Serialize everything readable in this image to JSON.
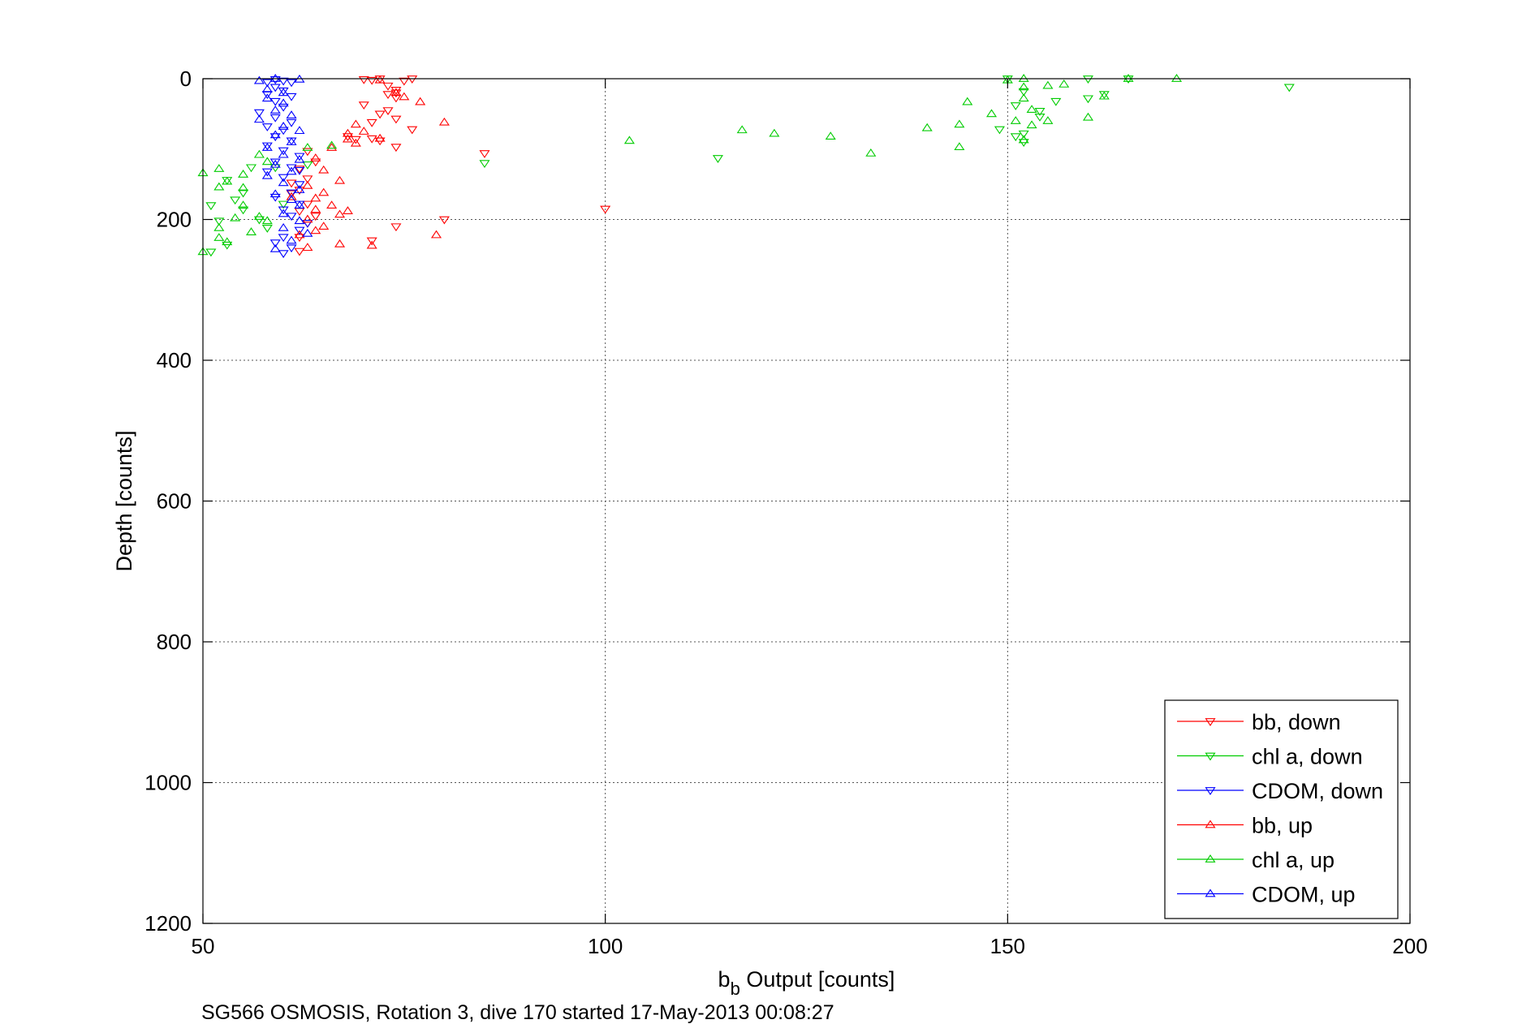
{
  "chart_data": {
    "type": "scatter",
    "title": "",
    "xlabel_main": "b",
    "xlabel_sub": "b",
    "xlabel_rest": " Output [counts]",
    "ylabel": "Depth [counts]",
    "caption": "SG566 OSMOSIS, Rotation 3, dive 170 started 17-May-2013 00:08:27",
    "xlim": [
      50,
      200
    ],
    "ylim": [
      0,
      1200
    ],
    "y_reversed": true,
    "grid": true,
    "legend_position": "bottom-right",
    "x_ticks": [
      50,
      100,
      150,
      200
    ],
    "y_ticks": [
      0,
      200,
      400,
      600,
      800,
      1000,
      1200
    ],
    "series": [
      {
        "name": "bb, down",
        "color": "#ff0000",
        "marker": "triangle-down",
        "points": [
          [
            70,
            1
          ],
          [
            71,
            2
          ],
          [
            72,
            0
          ],
          [
            75,
            3
          ],
          [
            76,
            0
          ],
          [
            73,
            10
          ],
          [
            74,
            16
          ],
          [
            74,
            20
          ],
          [
            74,
            27
          ],
          [
            73,
            22
          ],
          [
            70,
            37
          ],
          [
            73,
            45
          ],
          [
            72,
            50
          ],
          [
            74,
            57
          ],
          [
            71,
            62
          ],
          [
            76,
            72
          ],
          [
            68,
            82
          ],
          [
            71,
            85
          ],
          [
            72,
            88
          ],
          [
            74,
            97
          ],
          [
            85,
            106
          ],
          [
            63,
            103
          ],
          [
            64,
            118
          ],
          [
            62,
            128
          ],
          [
            63,
            142
          ],
          [
            61,
            148
          ],
          [
            62,
            158
          ],
          [
            61,
            163
          ],
          [
            63,
            178
          ],
          [
            62,
            188
          ],
          [
            100,
            185
          ],
          [
            64,
            195
          ],
          [
            63,
            205
          ],
          [
            80,
            200
          ],
          [
            74,
            210
          ],
          [
            62,
            225
          ],
          [
            71,
            230
          ],
          [
            62,
            245
          ],
          [
            69,
            86
          ]
        ]
      },
      {
        "name": "chl a, down",
        "color": "#00cc00",
        "marker": "triangle-down",
        "points": [
          [
            150,
            0
          ],
          [
            160,
            0
          ],
          [
            165,
            0
          ],
          [
            185,
            12
          ],
          [
            152,
            18
          ],
          [
            151,
            38
          ],
          [
            154,
            46
          ],
          [
            160,
            28
          ],
          [
            162,
            22
          ],
          [
            156,
            32
          ],
          [
            154,
            54
          ],
          [
            152,
            78
          ],
          [
            151,
            82
          ],
          [
            152,
            90
          ],
          [
            149,
            72
          ],
          [
            85,
            120
          ],
          [
            114,
            113
          ],
          [
            51,
            180
          ],
          [
            51,
            246
          ],
          [
            53,
            144
          ],
          [
            52,
            202
          ],
          [
            53,
            236
          ],
          [
            55,
            186
          ],
          [
            55,
            162
          ],
          [
            57,
            200
          ],
          [
            58,
            212
          ],
          [
            56,
            126
          ],
          [
            59,
            126
          ],
          [
            63,
            122
          ],
          [
            60,
            178
          ],
          [
            54,
            172
          ]
        ]
      },
      {
        "name": "CDOM, down",
        "color": "#0000ff",
        "marker": "triangle-down",
        "points": [
          [
            58,
            5
          ],
          [
            59,
            1
          ],
          [
            60,
            3
          ],
          [
            61,
            5
          ],
          [
            59,
            12
          ],
          [
            60,
            17
          ],
          [
            58,
            22
          ],
          [
            61,
            25
          ],
          [
            59,
            32
          ],
          [
            60,
            40
          ],
          [
            57,
            48
          ],
          [
            59,
            55
          ],
          [
            61,
            62
          ],
          [
            58,
            68
          ],
          [
            60,
            73
          ],
          [
            59,
            82
          ],
          [
            61,
            88
          ],
          [
            58,
            95
          ],
          [
            60,
            102
          ],
          [
            62,
            110
          ],
          [
            59,
            118
          ],
          [
            61,
            126
          ],
          [
            58,
            132
          ],
          [
            60,
            140
          ],
          [
            62,
            150
          ],
          [
            61,
            162
          ],
          [
            59,
            168
          ],
          [
            62,
            178
          ],
          [
            60,
            186
          ],
          [
            61,
            195
          ],
          [
            63,
            205
          ],
          [
            62,
            215
          ],
          [
            60,
            225
          ],
          [
            59,
            233
          ],
          [
            61,
            240
          ],
          [
            60,
            248
          ],
          [
            62,
            130
          ]
        ]
      },
      {
        "name": "bb, up",
        "color": "#ff0000",
        "marker": "triangle-up",
        "points": [
          [
            72,
            2
          ],
          [
            74,
            20
          ],
          [
            75,
            26
          ],
          [
            77,
            33
          ],
          [
            80,
            62
          ],
          [
            69,
            65
          ],
          [
            70,
            75
          ],
          [
            68,
            78
          ],
          [
            68,
            86
          ],
          [
            66,
            98
          ],
          [
            64,
            113
          ],
          [
            65,
            130
          ],
          [
            67,
            145
          ],
          [
            63,
            152
          ],
          [
            65,
            162
          ],
          [
            61,
            168
          ],
          [
            64,
            170
          ],
          [
            66,
            180
          ],
          [
            64,
            186
          ],
          [
            68,
            188
          ],
          [
            67,
            193
          ],
          [
            63,
            200
          ],
          [
            65,
            210
          ],
          [
            64,
            216
          ],
          [
            62,
            222
          ],
          [
            67,
            235
          ],
          [
            71,
            237
          ],
          [
            63,
            240
          ],
          [
            79,
            222
          ],
          [
            72,
            85
          ],
          [
            69,
            92
          ]
        ]
      },
      {
        "name": "chl a, up",
        "color": "#00cc00",
        "marker": "triangle-up",
        "points": [
          [
            152,
            0
          ],
          [
            150,
            2
          ],
          [
            171,
            0
          ],
          [
            165,
            0
          ],
          [
            157,
            8
          ],
          [
            155,
            10
          ],
          [
            152,
            12
          ],
          [
            145,
            33
          ],
          [
            148,
            50
          ],
          [
            144,
            65
          ],
          [
            140,
            70
          ],
          [
            155,
            60
          ],
          [
            153,
            66
          ],
          [
            151,
            60
          ],
          [
            153,
            44
          ],
          [
            152,
            28
          ],
          [
            117,
            73
          ],
          [
            121,
            78
          ],
          [
            128,
            82
          ],
          [
            133,
            106
          ],
          [
            144,
            97
          ],
          [
            103,
            88
          ],
          [
            160,
            55
          ],
          [
            152,
            87
          ],
          [
            162,
            25
          ],
          [
            66,
            95
          ],
          [
            63,
            98
          ],
          [
            50,
            134
          ],
          [
            52,
            128
          ],
          [
            55,
            136
          ],
          [
            53,
            146
          ],
          [
            57,
            108
          ],
          [
            58,
            118
          ],
          [
            55,
            155
          ],
          [
            52,
            154
          ],
          [
            55,
            180
          ],
          [
            54,
            198
          ],
          [
            52,
            212
          ],
          [
            56,
            218
          ],
          [
            52,
            226
          ],
          [
            53,
            232
          ],
          [
            50,
            246
          ],
          [
            57,
            196
          ],
          [
            58,
            202
          ]
        ]
      },
      {
        "name": "CDOM, up",
        "color": "#0000ff",
        "marker": "triangle-up",
        "points": [
          [
            57,
            3
          ],
          [
            59,
            0
          ],
          [
            62,
            1
          ],
          [
            58,
            15
          ],
          [
            60,
            20
          ],
          [
            58,
            28
          ],
          [
            60,
            35
          ],
          [
            59,
            45
          ],
          [
            61,
            52
          ],
          [
            57,
            58
          ],
          [
            60,
            68
          ],
          [
            62,
            74
          ],
          [
            59,
            80
          ],
          [
            61,
            90
          ],
          [
            58,
            98
          ],
          [
            60,
            108
          ],
          [
            62,
            115
          ],
          [
            59,
            122
          ],
          [
            61,
            132
          ],
          [
            58,
            138
          ],
          [
            60,
            148
          ],
          [
            62,
            158
          ],
          [
            59,
            164
          ],
          [
            61,
            172
          ],
          [
            62,
            180
          ],
          [
            60,
            192
          ],
          [
            62,
            202
          ],
          [
            60,
            212
          ],
          [
            63,
            220
          ],
          [
            61,
            230
          ],
          [
            59,
            242
          ]
        ]
      }
    ]
  }
}
